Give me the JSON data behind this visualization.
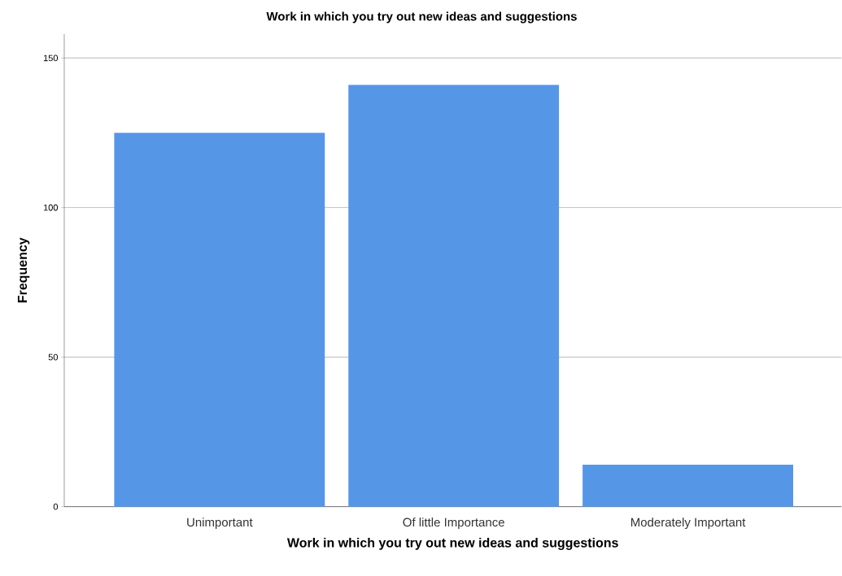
{
  "chart_data": {
    "type": "bar",
    "title": "Work in which you try out new ideas and suggestions",
    "xlabel": "Work in which you try out new ideas and suggestions",
    "ylabel": "Frequency",
    "categories": [
      "Unimportant",
      "Of little Importance",
      "Moderately Important"
    ],
    "values": [
      125,
      141,
      14
    ],
    "color": "#5596e6",
    "ylim": [
      0,
      158
    ],
    "yticks": [
      0,
      50,
      100,
      150
    ],
    "grid": "y"
  }
}
